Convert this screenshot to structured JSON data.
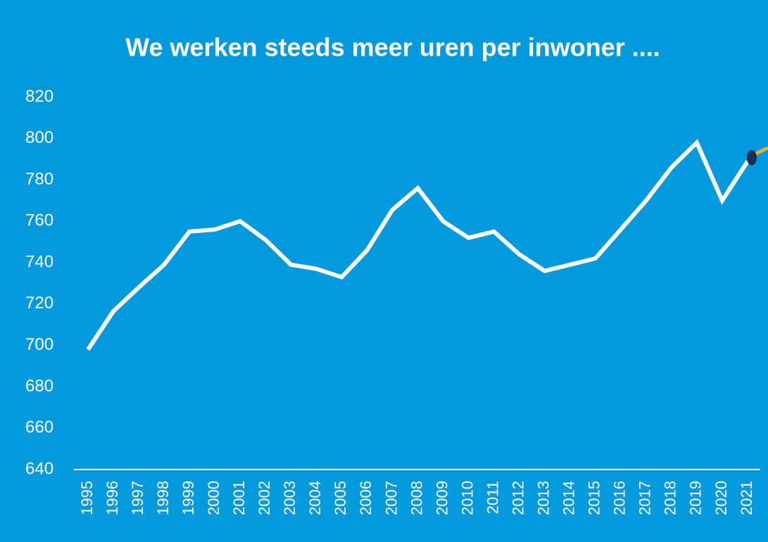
{
  "chart_data": {
    "type": "line",
    "title": "We werken steeds meer uren per inwoner ....",
    "categories": [
      "1995",
      "1996",
      "1997",
      "1998",
      "1999",
      "2000",
      "2001",
      "2002",
      "2003",
      "2004",
      "2005",
      "2006",
      "2007",
      "2008",
      "2009",
      "2010",
      "2011",
      "2012",
      "2013",
      "2014",
      "2015",
      "2016",
      "2017",
      "2018",
      "2019",
      "2020",
      "2021"
    ],
    "values": [
      698,
      716.5,
      728,
      739,
      755,
      756,
      760,
      751,
      739,
      737,
      733,
      746,
      765.5,
      776,
      760,
      752,
      755,
      744,
      736,
      739,
      742,
      756,
      770,
      786,
      798,
      770,
      789
    ],
    "color": "#ffffff",
    "ylim": [
      640,
      820
    ],
    "yticks": [
      640,
      660,
      680,
      700,
      720,
      740,
      760,
      780,
      800,
      820
    ],
    "grid": false
  }
}
